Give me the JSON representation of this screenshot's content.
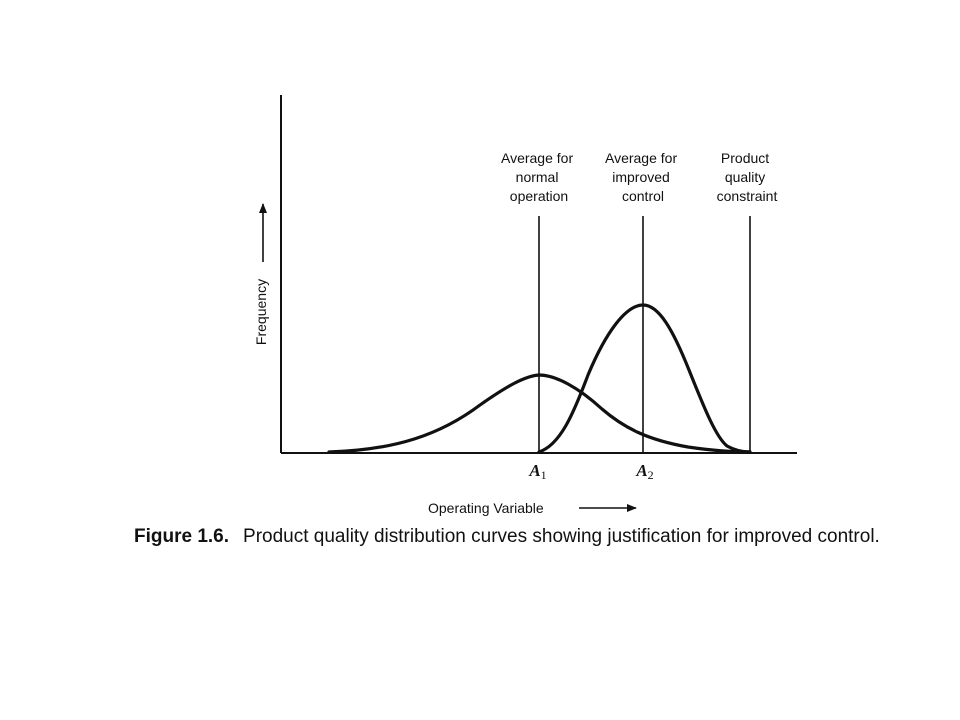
{
  "figure": {
    "number": "Figure 1.6.",
    "caption": "Product quality distribution curves showing justification for improved control.",
    "y_axis_label": "Frequency",
    "x_axis_label": "Operating Variable",
    "markers": [
      {
        "id": "a1",
        "label_lines": [
          "Average for",
          "normal",
          "operation"
        ],
        "symbol": "A",
        "subscript": "1"
      },
      {
        "id": "a2",
        "label_lines": [
          "Average for",
          "improved",
          "control"
        ],
        "symbol": "A",
        "subscript": "2"
      },
      {
        "id": "constraint",
        "label_lines": [
          "Product",
          "quality",
          "constraint"
        ]
      }
    ],
    "curves": [
      {
        "id": "normal-operation-curve",
        "description_visible": false
      },
      {
        "id": "improved-control-curve",
        "description_visible": false
      }
    ],
    "colors": {
      "ink": "#111111",
      "background": "#ffffff"
    }
  }
}
